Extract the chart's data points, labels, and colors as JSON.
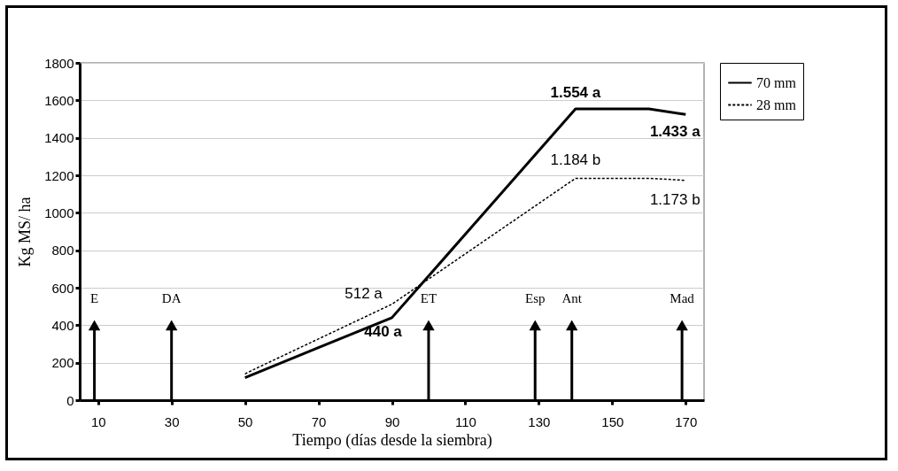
{
  "chart_data": {
    "type": "line",
    "xlabel": "Tiempo (días desde la siembra)",
    "ylabel": "Kg MS/ ha",
    "xlim": [
      5,
      175
    ],
    "ylim": [
      0,
      1800
    ],
    "xticks": [
      10,
      30,
      50,
      70,
      90,
      110,
      130,
      150,
      170
    ],
    "yticks": [
      0,
      200,
      400,
      600,
      800,
      1000,
      1200,
      1400,
      1600,
      1800
    ],
    "grid": "y",
    "legend": "right",
    "marker": "none",
    "series": [
      {
        "name": "70 mm",
        "color": "#000000",
        "line_style": "solid",
        "x": [
          50,
          70,
          90,
          140,
          160,
          170
        ],
        "values": [
          120,
          280,
          440,
          1554,
          1554,
          1525
        ]
      },
      {
        "name": "28 mm",
        "color": "#000000",
        "line_style": "dashed",
        "x": [
          50,
          52,
          90,
          140,
          160,
          170
        ],
        "values": [
          140,
          160,
          512,
          1184,
          1184,
          1173
        ]
      }
    ],
    "annotations": [
      {
        "text": "440 a",
        "x": 90,
        "y": 440
      },
      {
        "text": "1.554 a",
        "x": 140,
        "y": 1554
      },
      {
        "text": "1.433 a",
        "x": 170,
        "y": 1525
      },
      {
        "text": "512 a",
        "x": 90,
        "y": 512
      },
      {
        "text": "1.184 b",
        "x": 140,
        "y": 1184
      },
      {
        "text": "1.173 b",
        "x": 170,
        "y": 1173
      },
      {
        "text": "E",
        "x": 9,
        "y": 400
      },
      {
        "text": "DA",
        "x": 30,
        "y": 400
      },
      {
        "text": "ET",
        "x": 100,
        "y": 400
      },
      {
        "text": "Esp",
        "x": 129,
        "y": 400
      },
      {
        "text": "Ant",
        "x": 139,
        "y": 400
      },
      {
        "text": "Mad",
        "x": 169,
        "y": 400
      }
    ]
  }
}
